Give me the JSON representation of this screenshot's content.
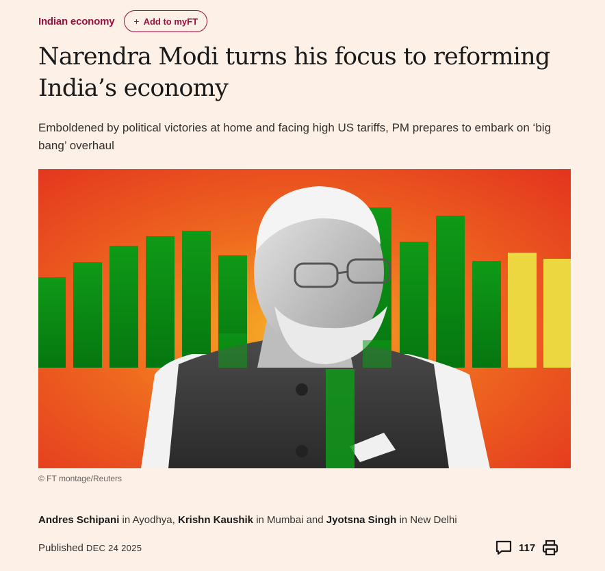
{
  "topic": {
    "label": "Indian economy",
    "myft_label": "Add to myFT",
    "myft_plus": "+"
  },
  "headline": "Narendra Modi turns his focus to reforming India’s economy",
  "standfirst": "Emboldened by political victories at home and facing high US tariffs, PM prepares to embark on ‘big bang’ overhaul",
  "image": {
    "credit": "© FT montage/Reuters"
  },
  "byline": {
    "authors": [
      {
        "name": "Andres Schipani",
        "location": "in Ayodhya,"
      },
      {
        "name": "Krishn Kaushik",
        "location": "in Mumbai and"
      },
      {
        "name": "Jyotsna Singh",
        "location": "in New Delhi"
      }
    ]
  },
  "published": {
    "label": "Published",
    "date": "DEC 24 2025"
  },
  "comments": {
    "count": "117"
  },
  "icons": {
    "comment": "comment-icon",
    "print": "print-icon"
  },
  "colors": {
    "brand": "#990f3d",
    "background": "#fdf0e7"
  }
}
